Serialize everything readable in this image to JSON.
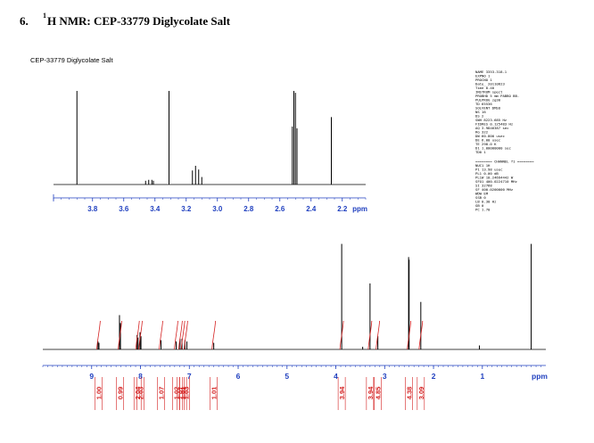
{
  "heading": {
    "number": "6.",
    "superscript": "1",
    "text": "H NMR: CEP-33779 Diglycolate Salt"
  },
  "figure_title": "CEP-33779 Diglycolate Salt",
  "colors": {
    "spectrum": "#000000",
    "axis_tick_labels": "#1f3fbf",
    "integral": "#d41f1f",
    "text": "#000000"
  },
  "params_block_1": [
    "NAME        3353-318-1",
    "EXPNO               1",
    "PROCNO              1",
    "Date_        20110623",
    "Time             8.40",
    "INSTRUM          spect",
    "PROBHD   5 mm PABBO BB-",
    "PULPROG          zg30",
    "TD              65536",
    "SOLVENT          DMSO",
    "NS                 16",
    "DS                  2",
    "SWH       8223.685 Hz",
    "FIDRES    0.125483 Hz",
    "AQ       3.9846387 sec",
    "RG                322",
    "DW             60.800 usec",
    "DE               6.00 usec",
    "TE              298.0 K",
    "D1         1.00000000 sec",
    "TD0                 1"
  ],
  "params_channel_header": "======== CHANNEL f1 ========",
  "params_block_2": [
    "NUC1              1H",
    "P1            13.98 usec",
    "PL1             0.00 dB",
    "PL1W       10.24694442 W",
    "SFO1     400.0224710 MHz",
    "SI              32768",
    "SF       400.0200000 MHz",
    "WDW                EM",
    "SSB                 0",
    "LB               0.30 Hz",
    "GB                  0",
    "PC               1.70"
  ],
  "chart_data": [
    {
      "type": "line",
      "title": "",
      "xlabel": "ppm",
      "xlim": [
        4.05,
        2.05
      ],
      "x_reversed": true,
      "ticks": [
        3.8,
        3.6,
        3.4,
        3.2,
        3.0,
        2.8,
        2.6,
        2.4,
        2.2
      ],
      "tick_labels": [
        "3.8",
        "3.6",
        "3.4",
        "3.2",
        "3.0",
        "2.8",
        "2.6",
        "2.4",
        "2.2"
      ],
      "unit_label": "ppm",
      "peaks": [
        {
          "shift": 3.9,
          "height": 1.0
        },
        {
          "shift": 3.46,
          "height": 0.04
        },
        {
          "shift": 3.44,
          "height": 0.05
        },
        {
          "shift": 3.42,
          "height": 0.05
        },
        {
          "shift": 3.41,
          "height": 0.04
        },
        {
          "shift": 3.31,
          "height": 1.0
        },
        {
          "shift": 3.16,
          "height": 0.15
        },
        {
          "shift": 3.14,
          "height": 0.2
        },
        {
          "shift": 3.12,
          "height": 0.16
        },
        {
          "shift": 3.1,
          "height": 0.08
        },
        {
          "shift": 2.52,
          "height": 0.62
        },
        {
          "shift": 2.51,
          "height": 1.0
        },
        {
          "shift": 2.5,
          "height": 0.98
        },
        {
          "shift": 2.49,
          "height": 0.6
        },
        {
          "shift": 2.27,
          "height": 0.72
        }
      ]
    },
    {
      "type": "line",
      "title": "",
      "xlabel": "ppm",
      "xlim": [
        10.0,
        -0.3
      ],
      "x_reversed": true,
      "ticks": [
        9,
        8,
        7,
        6,
        5,
        4,
        3,
        2,
        1
      ],
      "tick_labels": [
        "9",
        "8",
        "7",
        "6",
        "5",
        "4",
        "3",
        "2",
        "1"
      ],
      "unit_label": "ppm",
      "peaks": [
        {
          "shift": 8.87,
          "height": 0.06
        },
        {
          "shift": 8.85,
          "height": 0.05
        },
        {
          "shift": 8.43,
          "height": 0.26
        },
        {
          "shift": 8.41,
          "height": 0.2
        },
        {
          "shift": 8.07,
          "height": 0.11
        },
        {
          "shift": 8.05,
          "height": 0.09
        },
        {
          "shift": 8.01,
          "height": 0.13
        },
        {
          "shift": 7.99,
          "height": 0.1
        },
        {
          "shift": 7.58,
          "height": 0.07
        },
        {
          "shift": 7.27,
          "height": 0.06
        },
        {
          "shift": 7.19,
          "height": 0.08
        },
        {
          "shift": 7.15,
          "height": 0.08
        },
        {
          "shift": 7.09,
          "height": 0.07
        },
        {
          "shift": 7.05,
          "height": 0.06
        },
        {
          "shift": 6.5,
          "height": 0.05
        },
        {
          "shift": 3.88,
          "height": 0.8
        },
        {
          "shift": 3.45,
          "height": 0.02
        },
        {
          "shift": 3.3,
          "height": 0.5
        },
        {
          "shift": 3.14,
          "height": 0.1
        },
        {
          "shift": 2.51,
          "height": 0.7
        },
        {
          "shift": 2.5,
          "height": 0.68
        },
        {
          "shift": 2.26,
          "height": 0.36
        },
        {
          "shift": 1.06,
          "height": 0.03
        },
        {
          "shift": 0.0,
          "height": 0.8
        }
      ],
      "integrals": [
        {
          "shift": 8.86,
          "value": "1.00"
        },
        {
          "shift": 8.42,
          "value": "0.99"
        },
        {
          "shift": 8.06,
          "value": "2.04"
        },
        {
          "shift": 8.0,
          "value": "2.03"
        },
        {
          "shift": 7.58,
          "value": "1.07"
        },
        {
          "shift": 7.27,
          "value": "1.02"
        },
        {
          "shift": 7.18,
          "value": "1.01"
        },
        {
          "shift": 7.13,
          "value": "1.01"
        },
        {
          "shift": 7.07,
          "value": "1.03"
        },
        {
          "shift": 6.5,
          "value": "1.01"
        },
        {
          "shift": 3.88,
          "value": "3.94"
        },
        {
          "shift": 3.3,
          "value": "3.94"
        },
        {
          "shift": 3.14,
          "value": "4.85"
        },
        {
          "shift": 2.5,
          "value": "4.38"
        },
        {
          "shift": 2.26,
          "value": "3.09"
        }
      ]
    }
  ]
}
